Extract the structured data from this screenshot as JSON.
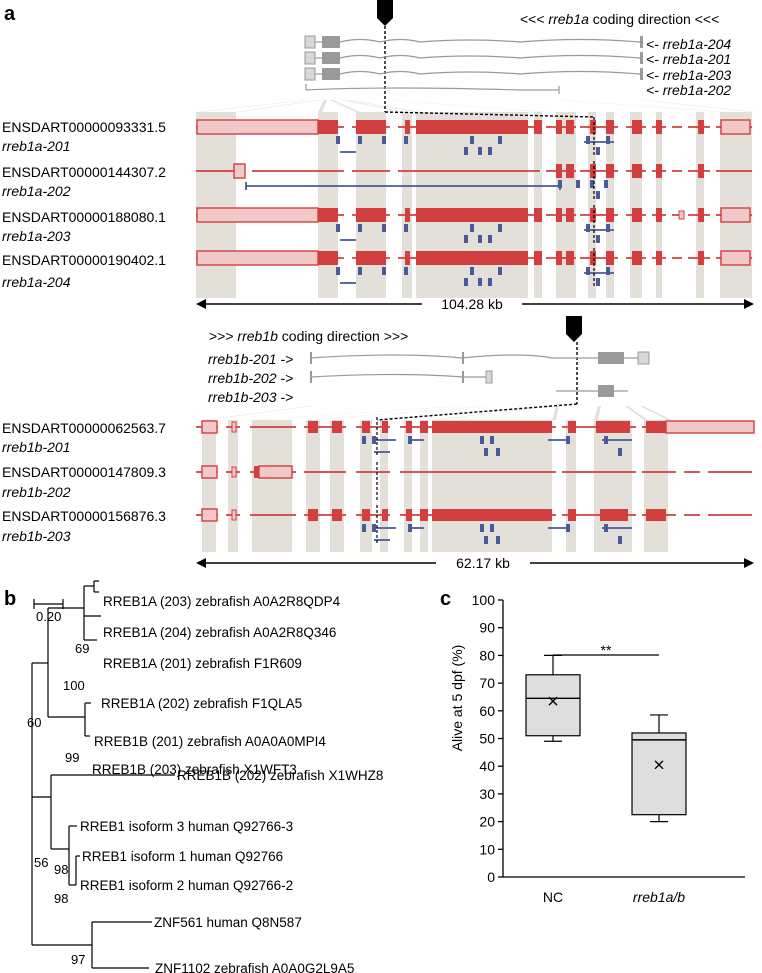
{
  "figure": {
    "panels": {
      "a": "a",
      "b": "b",
      "c": "c"
    },
    "rreb1a": {
      "direction_prefix": "<<< ",
      "direction_gene": "rreb1a",
      "direction_suffix": " coding direction <<<",
      "mini_labels": [
        "<- rreb1a-204",
        "<- rreb1a-201",
        "<- rreb1a-203",
        "<- rreb1a-202"
      ],
      "transcripts": [
        {
          "id": "ENSDART00000093331.5",
          "name": "rreb1a-201"
        },
        {
          "id": "ENSDART00000144307.2",
          "name": "rreb1a-202"
        },
        {
          "id": "ENSDART00000188080.1",
          "name": "rreb1a-203"
        },
        {
          "id": "ENSDART00000190402.1",
          "name": "rreb1a-204"
        }
      ],
      "scale": "104.28 kb"
    },
    "rreb1b": {
      "direction_prefix": ">>> ",
      "direction_gene": "rreb1b",
      "direction_suffix": " coding direction >>>",
      "mini_labels": [
        "rreb1b-201 ->",
        "rreb1b-202 ->",
        "rreb1b-203 ->"
      ],
      "transcripts": [
        {
          "id": "ENSDART00000062563.7",
          "name": "rreb1b-201"
        },
        {
          "id": "ENSDART00000147809.3",
          "name": "rreb1b-202"
        },
        {
          "id": "ENSDART00000156876.3",
          "name": "rreb1b-203"
        }
      ],
      "scale": "62.17 kb"
    },
    "tree": {
      "scale_label": "0.20",
      "leaves": [
        "RREB1A (203) zebrafish A0A2R8QDP4",
        "RREB1A (204) zebrafish A0A2R8Q346",
        "RREB1A (201) zebrafish F1R609",
        "RREB1A (202) zebrafish F1QLA5",
        "RREB1B (201) zebrafish A0A0A0MPI4",
        "RREB1B (203) zebrafish X1WFT3",
        "RREB1B (202) zebrafish X1WHZ8",
        "RREB1 isoform 3 human Q92766-3",
        "RREB1 isoform 1 human Q92766",
        "RREB1 isoform 2 human Q92766-2",
        "ZNF561 human Q8N587",
        "ZNF1102 zebrafish A0A0G2L9A5"
      ],
      "bootstrap": [
        "69",
        "100",
        "60",
        "99",
        "56",
        "98",
        "98",
        "97"
      ]
    },
    "colors": {
      "exon": "#d23f3f",
      "utr_fill": "#f2c9c9",
      "shade": "#e3e0da",
      "blue": "#4a5a9a",
      "grey_gene": "#9a9a9a",
      "box_fill": "#dedede"
    }
  },
  "chart_data": {
    "type": "box",
    "title": "",
    "ylabel": "Alive at 5 dpf (%)",
    "xlabel": "",
    "ylim": [
      0,
      100
    ],
    "yticks": [
      0,
      10,
      20,
      30,
      40,
      50,
      60,
      70,
      80,
      90,
      100
    ],
    "categories": [
      "NC",
      "rreb1a/b"
    ],
    "boxes": [
      {
        "name": "NC",
        "min": 49,
        "q1": 51,
        "median": 64.5,
        "q3": 73,
        "max": 80,
        "mean": 63.5
      },
      {
        "name": "rreb1a/b",
        "min": 20,
        "q1": 22.5,
        "median": 49.5,
        "q3": 52,
        "max": 58.5,
        "mean": 40.5
      }
    ],
    "significance": "**"
  }
}
